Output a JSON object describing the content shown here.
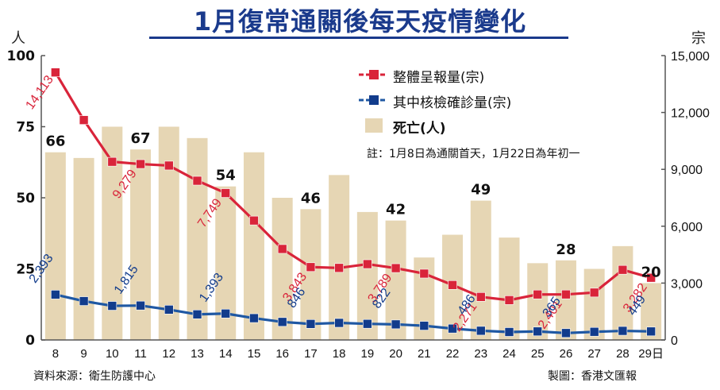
{
  "title": "1月復常通關後每天疫情變化",
  "left_axis_unit": "人",
  "right_axis_unit": "宗",
  "legend": {
    "cases": "整體呈報量(宗)",
    "mainland": "其中核檢確診量(宗)",
    "deaths": "死亡(人)",
    "note": "註：1月8日為通關首天，1月22日為年初一"
  },
  "source": "資料來源：衛生防護中心",
  "credit": "製圖：香港文匯報",
  "colors": {
    "title": "#1a3a8c",
    "cases_line": "#d9243a",
    "mainland_line": "#1f58a3",
    "mainland_marker": "#123c8c",
    "deaths_bar": "#e6d6b4",
    "axis_line": "#555555"
  },
  "chart_data": {
    "type": "bar+line",
    "categories": [
      "8",
      "9",
      "10",
      "11",
      "12",
      "13",
      "14",
      "15",
      "16",
      "17",
      "18",
      "19",
      "20",
      "21",
      "22",
      "23",
      "24",
      "25",
      "26",
      "27",
      "28",
      "29日"
    ],
    "deaths": {
      "name": "死亡(人)",
      "axis": "left",
      "values": [
        66,
        64,
        75,
        67,
        75,
        71,
        54,
        66,
        50,
        46,
        58,
        45,
        42,
        29,
        37,
        49,
        36,
        27,
        28,
        25,
        33,
        20
      ],
      "labeled_indices": [
        0,
        3,
        6,
        9,
        12,
        15,
        18,
        21
      ]
    },
    "cases": {
      "name": "整體呈報量(宗)",
      "axis": "right",
      "values": [
        14113,
        11600,
        9400,
        9279,
        9200,
        8400,
        7749,
        6300,
        4800,
        3843,
        3800,
        4000,
        3789,
        3500,
        2900,
        2271,
        2100,
        2400,
        2401,
        2500,
        3700,
        3282
      ],
      "labeled_indices": [
        0,
        3,
        6,
        9,
        12,
        15,
        18,
        21
      ]
    },
    "mainland": {
      "name": "其中核檢確診量(宗)",
      "axis": "right",
      "values": [
        2393,
        2050,
        1800,
        1815,
        1600,
        1350,
        1393,
        1150,
        950,
        846,
        900,
        850,
        822,
        750,
        600,
        486,
        420,
        450,
        365,
        430,
        480,
        449
      ],
      "labeled_indices": [
        0,
        3,
        6,
        9,
        12,
        15,
        18,
        21
      ]
    },
    "left_axis": {
      "ylim": [
        0,
        100
      ],
      "ticks": [
        "0",
        "25",
        "50",
        "75",
        "100"
      ]
    },
    "right_axis": {
      "ylim": [
        0,
        15000
      ],
      "ticks": [
        "0",
        "3,000",
        "6,000",
        "9,000",
        "12,000",
        "15,000"
      ]
    },
    "grid": false,
    "legend_position": "top-right"
  }
}
